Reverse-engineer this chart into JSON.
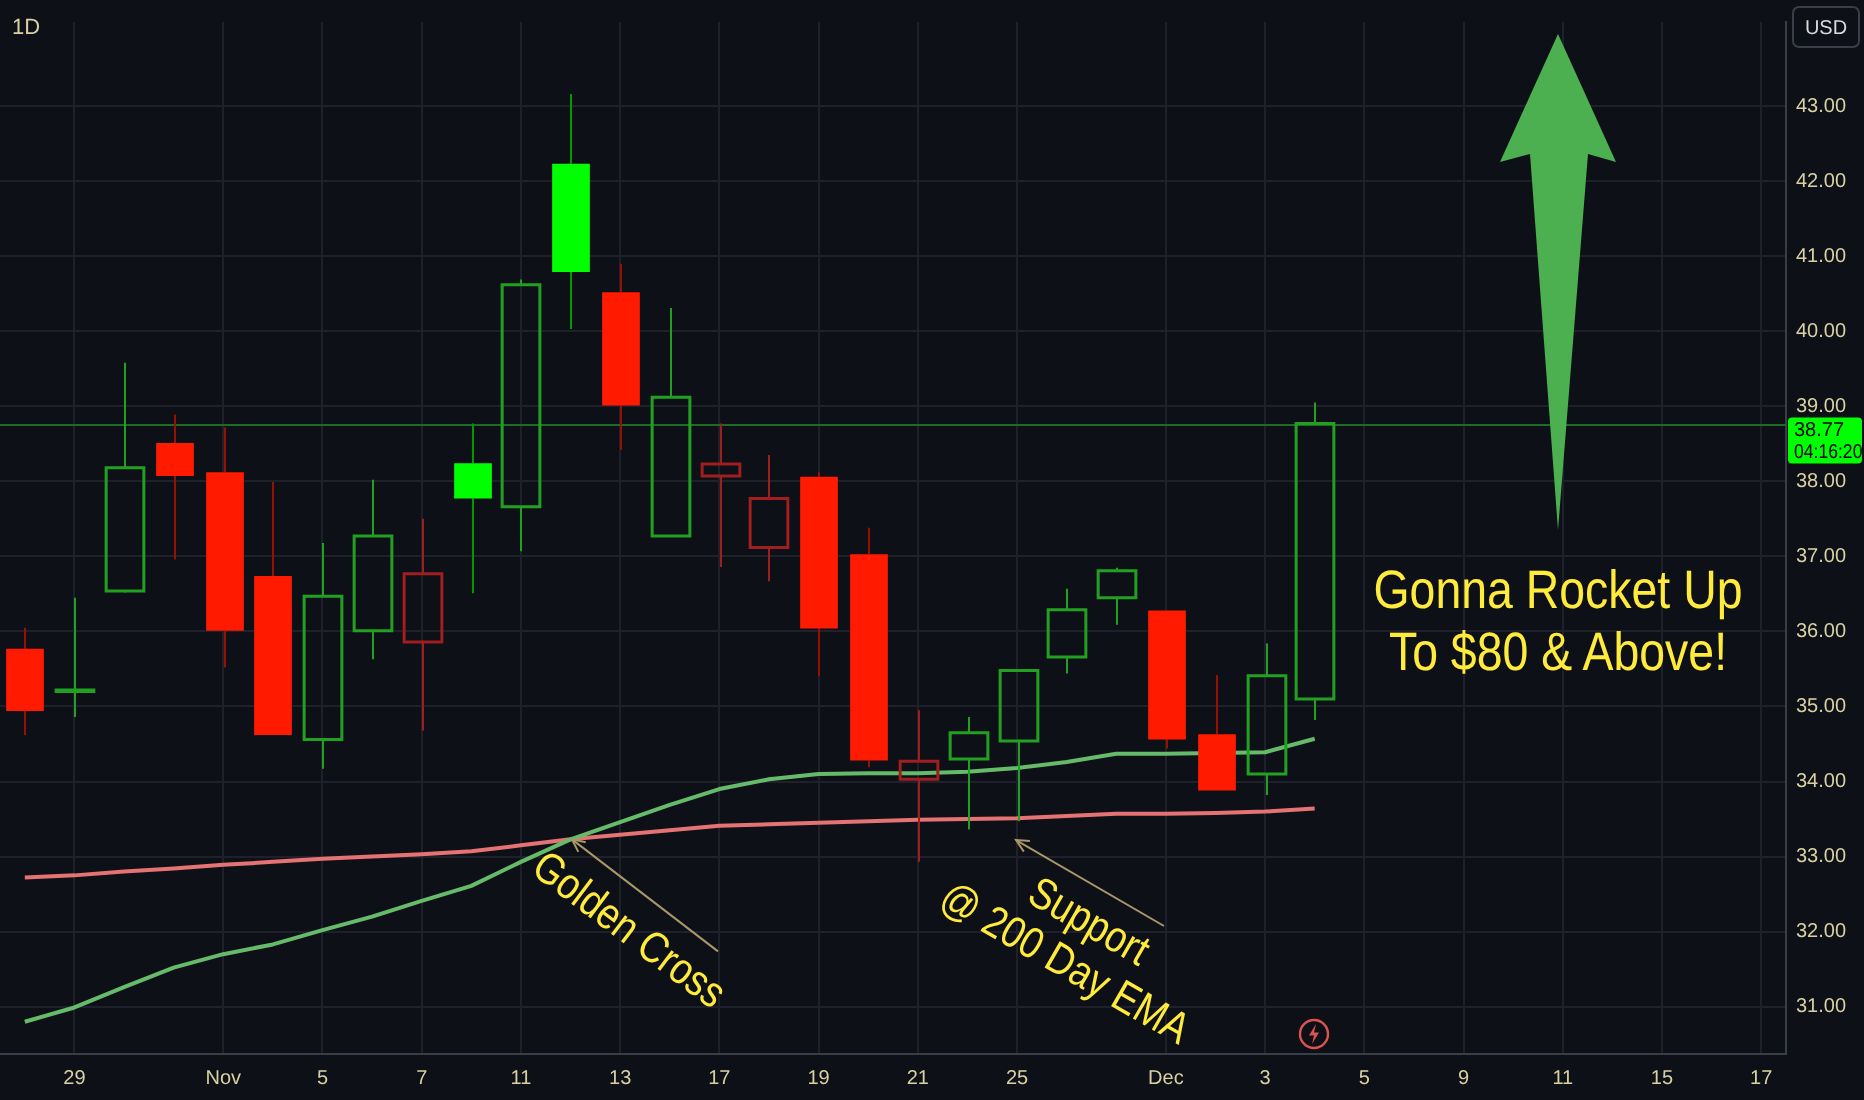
{
  "chart_data": {
    "type": "candlestick",
    "title": "1D",
    "ylabel": "USD",
    "categories": [
      null,
      "29",
      null,
      null,
      "Nov",
      null,
      "5",
      null,
      "7",
      null,
      "11",
      null,
      "13",
      null,
      "17",
      null,
      "19",
      null,
      "21",
      null,
      "25",
      null,
      null,
      "Dec",
      null,
      "3",
      null,
      "5",
      null,
      "9",
      null,
      "11",
      null,
      "15",
      null,
      "17"
    ],
    "ohlc": [
      [
        35.77,
        36.05,
        34.62,
        34.94
      ],
      [
        35.2,
        36.45,
        34.86,
        35.22
      ],
      [
        36.54,
        39.58,
        36.52,
        38.18
      ],
      [
        38.51,
        38.89,
        36.96,
        38.07
      ],
      [
        38.12,
        38.72,
        35.52,
        36.01
      ],
      [
        36.74,
        37.99,
        34.62,
        34.62
      ],
      [
        34.56,
        37.18,
        34.17,
        36.47
      ],
      [
        36.01,
        38.02,
        35.63,
        37.27
      ],
      [
        35.86,
        37.5,
        34.68,
        36.77
      ],
      [
        38.24,
        38.77,
        36.51,
        37.77
      ],
      [
        37.66,
        40.69,
        37.07,
        40.62
      ],
      [
        42.23,
        43.16,
        40.03,
        40.79
      ],
      [
        40.52,
        40.9,
        38.42,
        39.01
      ],
      [
        37.27,
        40.31,
        37.27,
        39.12
      ],
      [
        38.07,
        38.77,
        36.86,
        38.23
      ],
      [
        37.12,
        38.35,
        36.67,
        37.77
      ],
      [
        38.06,
        38.12,
        35.41,
        36.04
      ],
      [
        37.03,
        37.38,
        34.19,
        34.28
      ],
      [
        34.03,
        34.95,
        32.93,
        34.27
      ],
      [
        34.3,
        34.86,
        33.36,
        34.65
      ],
      [
        34.54,
        35.48,
        33.47,
        35.48
      ],
      [
        35.66,
        36.57,
        35.44,
        36.29
      ],
      [
        36.45,
        36.85,
        36.09,
        36.81
      ],
      [
        36.28,
        36.28,
        34.44,
        34.56
      ],
      [
        34.63,
        35.42,
        33.88,
        33.88
      ],
      [
        34.1,
        35.84,
        33.82,
        35.41
      ],
      [
        35.1,
        39.05,
        34.82,
        38.77
      ],
      null,
      null,
      null,
      null,
      null,
      null,
      null,
      null,
      null
    ],
    "colors": [
      "#ff1a00",
      "#22a022",
      "#22a022",
      "#ff1a00",
      "#ff1a00",
      "#ff1a00",
      "#22a022",
      "#22a022",
      "#a01e1e",
      "#00ff00",
      "#22a022",
      "#00ff00",
      "#ff1a00",
      "#22a022",
      "#a01e1e",
      "#a01e1e",
      "#ff1a00",
      "#ff1a00",
      "#a01e1e",
      "#22a022",
      "#22a022",
      "#22a022",
      "#22a022",
      "#ff1a00",
      "#ff1a00",
      "#22a022",
      "#22a022",
      null,
      null,
      null,
      null,
      null,
      null,
      null,
      null,
      null
    ],
    "series": [
      {
        "type": "line",
        "color": "#66bb6a",
        "values": [
          30.8,
          30.99,
          31.26,
          31.52,
          31.7,
          31.83,
          32.02,
          32.2,
          32.41,
          32.61,
          32.93,
          33.23,
          33.46,
          33.69,
          33.9,
          34.03,
          34.1,
          34.11,
          34.11,
          34.13,
          34.18,
          34.26,
          34.37,
          34.37,
          null,
          34.39,
          34.57,
          null,
          null,
          null,
          null,
          null,
          null,
          null,
          null,
          null
        ]
      },
      {
        "type": "line",
        "color": "#e57373",
        "values": [
          32.72,
          32.75,
          32.8,
          32.84,
          32.89,
          32.93,
          32.97,
          33.0,
          33.03,
          33.07,
          33.15,
          33.23,
          33.29,
          33.35,
          33.41,
          33.43,
          33.45,
          33.47,
          33.49,
          33.5,
          33.51,
          33.54,
          33.57,
          33.57,
          33.58,
          33.6,
          33.64,
          null,
          null,
          null,
          null,
          null,
          null,
          null,
          null,
          null
        ]
      }
    ],
    "ylim": [
      30.37,
      44.12
    ],
    "yticks": [
      {
        "value": 31,
        "label": "31.00"
      },
      {
        "value": 32,
        "label": "32.00"
      },
      {
        "value": 33,
        "label": "33.00"
      },
      {
        "value": 34,
        "label": "34.00"
      },
      {
        "value": 35,
        "label": "35.00"
      },
      {
        "value": 36,
        "label": "36.00"
      },
      {
        "value": 37,
        "label": "37.00"
      },
      {
        "value": 38,
        "label": "38.00"
      },
      {
        "value": 39,
        "label": "39.00"
      },
      {
        "value": 40,
        "label": "40.00"
      },
      {
        "value": 41,
        "label": "41.00"
      },
      {
        "value": 42,
        "label": "42.00"
      },
      {
        "value": 43,
        "label": "43.00"
      }
    ],
    "grid": true,
    "ref_lines": [
      {
        "axis": "y",
        "value": 38.77,
        "label": "38.77",
        "color": "#1c6b26"
      }
    ],
    "annotations": [
      {
        "text": "Golden Cross",
        "y": 33.23
      },
      "Support\n@ 200 Day EMA",
      "Gonna Rocket Up\nTo $80 & Above!",
      "04:16:20"
    ]
  }
}
